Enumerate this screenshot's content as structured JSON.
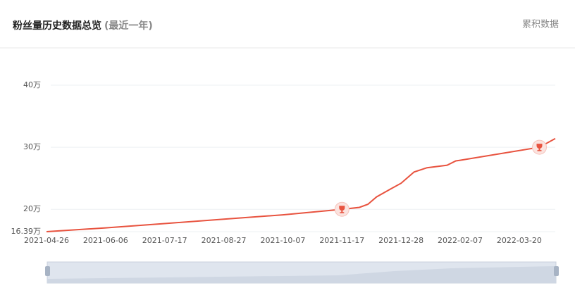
{
  "header": {
    "title": "粉丝量历史数据总览",
    "subtitle": "(最近一年)",
    "action": "累积数据"
  },
  "chart_data": {
    "type": "line",
    "x": [
      "2021-04-26",
      "2021-06-06",
      "2021-07-17",
      "2021-08-27",
      "2021-10-07",
      "2021-11-17",
      "2021-11-29",
      "2021-12-05",
      "2021-12-11",
      "2021-12-21",
      "2021-12-28",
      "2022-01-06",
      "2022-01-15",
      "2022-01-29",
      "2022-02-04",
      "2022-02-07",
      "2022-04-03",
      "2022-04-14"
    ],
    "series": [
      {
        "color": "#e8533f",
        "values": [
          16.39,
          17.0,
          17.7,
          18.4,
          19.1,
          20.0,
          20.3,
          20.8,
          22.0,
          23.3,
          24.2,
          26.0,
          26.7,
          27.1,
          27.8,
          27.9,
          30.0,
          31.4
        ]
      }
    ],
    "xlim": [
      "2021-04-26",
      "2022-04-14"
    ],
    "xticks": [
      "2021-04-26",
      "2021-06-06",
      "2021-07-17",
      "2021-08-27",
      "2021-10-07",
      "2021-11-17",
      "2021-12-28",
      "2022-02-07",
      "2022-03-20"
    ],
    "ylim": [
      16.39,
      40
    ],
    "yticks": [
      {
        "value": 16.39,
        "label": "16.39万"
      },
      {
        "value": 20,
        "label": "20万"
      },
      {
        "value": 30,
        "label": "30万"
      },
      {
        "value": 40,
        "label": "40万"
      }
    ],
    "grid": true
  }
}
